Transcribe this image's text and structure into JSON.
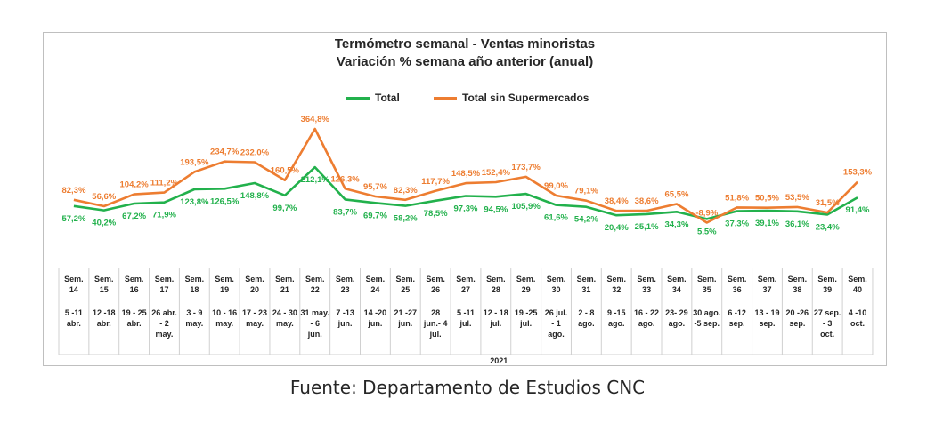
{
  "chart_data": {
    "type": "line",
    "title": "Termómetro semanal - Ventas minoristas",
    "subtitle": "Variación % semana año anterior (anual)",
    "year_label": "2021",
    "legend_position": "top",
    "categories": [
      {
        "week": "Sem. 14",
        "range": "5 -11 abr."
      },
      {
        "week": "Sem. 15",
        "range": "12 -18 abr."
      },
      {
        "week": "Sem. 16",
        "range": "19 - 25 abr."
      },
      {
        "week": "Sem. 17",
        "range": "26 abr. - 2 may."
      },
      {
        "week": "Sem. 18",
        "range": "3 - 9 may."
      },
      {
        "week": "Sem. 19",
        "range": "10 - 16 may."
      },
      {
        "week": "Sem. 20",
        "range": "17 - 23 may."
      },
      {
        "week": "Sem. 21",
        "range": "24 - 30 may."
      },
      {
        "week": "Sem. 22",
        "range": "31 may. - 6 jun."
      },
      {
        "week": "Sem. 23",
        "range": "7 -13 jun."
      },
      {
        "week": "Sem. 24",
        "range": "14 -20 jun."
      },
      {
        "week": "Sem. 25",
        "range": "21 -27 jun."
      },
      {
        "week": "Sem. 26",
        "range": "28 jun.- 4 jul."
      },
      {
        "week": "Sem. 27",
        "range": "5 -11 jul."
      },
      {
        "week": "Sem. 28",
        "range": "12 - 18 jul."
      },
      {
        "week": "Sem. 29",
        "range": "19 -25 jul."
      },
      {
        "week": "Sem. 30",
        "range": "26 jul. - 1 ago."
      },
      {
        "week": "Sem. 31",
        "range": "2 - 8 ago."
      },
      {
        "week": "Sem. 32",
        "range": "9 -15 ago."
      },
      {
        "week": "Sem. 33",
        "range": "16 - 22 ago."
      },
      {
        "week": "Sem. 34",
        "range": "23- 29 ago."
      },
      {
        "week": "Sem. 35",
        "range": "30 ago. -5 sep."
      },
      {
        "week": "Sem. 36",
        "range": "6 -12 sep."
      },
      {
        "week": "Sem. 37",
        "range": "13 - 19 sep."
      },
      {
        "week": "Sem. 38",
        "range": "20 -26 sep."
      },
      {
        "week": "Sem. 39",
        "range": "27 sep. - 3 oct."
      },
      {
        "week": "Sem. 40",
        "range": "4 -10 oct."
      }
    ],
    "series": [
      {
        "name": "Total",
        "color": "#22b14c",
        "values": [
          57.2,
          40.2,
          67.2,
          71.9,
          123.8,
          126.5,
          148.8,
          99.7,
          212.1,
          83.7,
          69.7,
          58.2,
          78.5,
          97.3,
          94.5,
          105.9,
          61.6,
          54.2,
          20.4,
          25.1,
          34.3,
          5.5,
          37.3,
          39.1,
          36.1,
          23.4,
          91.4
        ],
        "labels": [
          "57,2%",
          "40,2%",
          "67,2%",
          "71,9%",
          "123,8%",
          "126,5%",
          "148,8%",
          "99,7%",
          "212,1%",
          "83,7%",
          "69,7%",
          "58,2%",
          "78,5%",
          "97,3%",
          "94,5%",
          "105,9%",
          "61,6%",
          "54,2%",
          "20,4%",
          "25,1%",
          "34,3%",
          "5,5%",
          "37,3%",
          "39,1%",
          "36,1%",
          "23,4%",
          "91,4%"
        ]
      },
      {
        "name": "Total sin Supermercados",
        "color": "#ed7d31",
        "values": [
          82.3,
          56.6,
          104.2,
          111.2,
          193.5,
          234.7,
          232.0,
          160.5,
          364.8,
          126.3,
          95.7,
          82.3,
          117.7,
          148.5,
          152.4,
          173.7,
          99.0,
          79.1,
          38.4,
          38.6,
          65.5,
          -8.9,
          51.8,
          50.5,
          53.5,
          31.5,
          153.3
        ],
        "labels": [
          "82,3%",
          "56,6%",
          "104,2%",
          "111,2%",
          "193,5%",
          "234,7%",
          "232,0%",
          "160,5%",
          "364,8%",
          "126,3%",
          "95,7%",
          "82,3%",
          "117,7%",
          "148,5%",
          "152,4%",
          "173,7%",
          "99,0%",
          "79,1%",
          "38,4%",
          "38,6%",
          "65,5%",
          "-8,9%",
          "51,8%",
          "50,5%",
          "53,5%",
          "31,5%",
          "153,3%"
        ]
      }
    ]
  },
  "source": "Fuente: Departamento de Estudios CNC"
}
